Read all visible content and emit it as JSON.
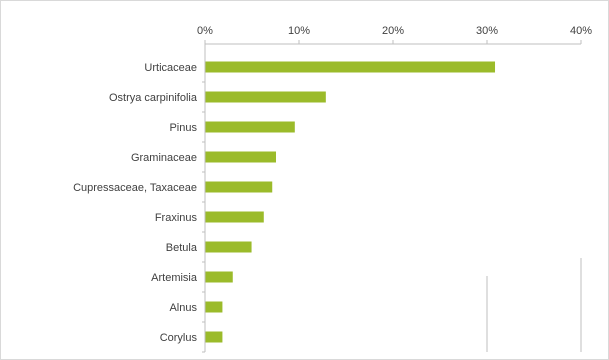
{
  "chart_data": {
    "type": "bar",
    "orientation": "horizontal",
    "categories": [
      "Urticaceae",
      "Ostrya carpinifolia",
      "Pinus",
      "Graminaceae",
      "Cupressaceae, Taxaceae",
      "Fraxinus",
      "Betula",
      "Artemisia",
      "Alnus",
      "Corylus"
    ],
    "values": [
      30.8,
      12.8,
      9.5,
      7.5,
      7.1,
      6.2,
      4.9,
      2.9,
      1.8,
      1.8
    ],
    "xlim": [
      0,
      40
    ],
    "xticks": [
      "0%",
      "10%",
      "20%",
      "30%",
      "40%"
    ],
    "x_axis_position": "top",
    "bar_color": "#9bbb2a",
    "title": "",
    "xlabel": "",
    "ylabel": "",
    "grid": false,
    "legend": "none"
  }
}
